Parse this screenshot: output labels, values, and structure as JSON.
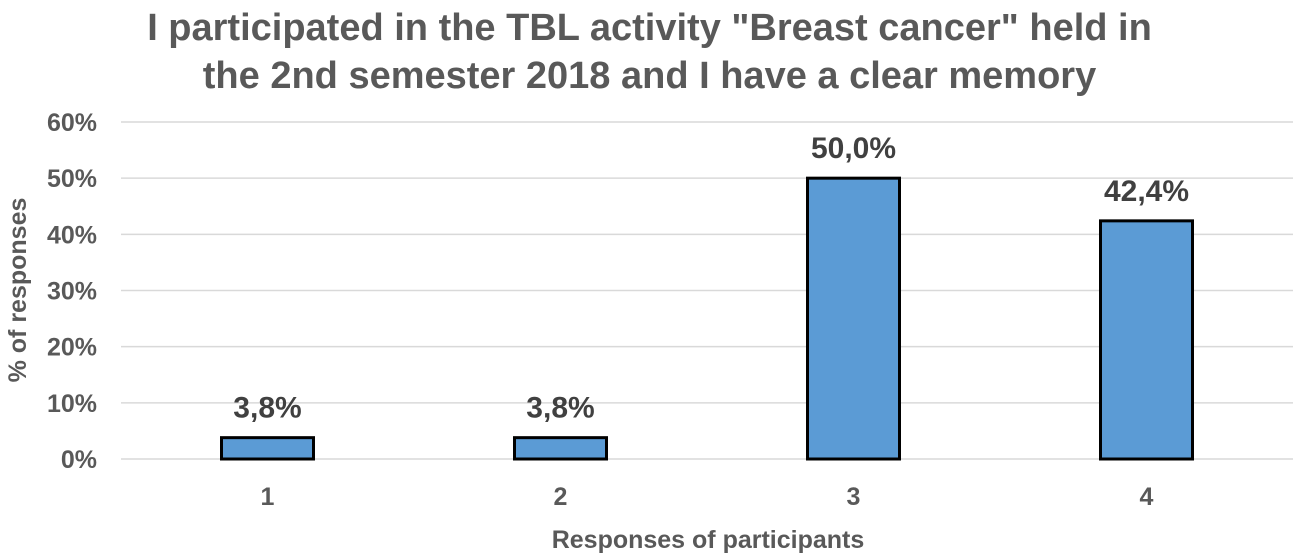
{
  "chart_data": {
    "type": "bar",
    "title_lines": [
      "I participated in the TBL activity \"Breast cancer\" held in",
      "the 2nd semester 2018 and I have a clear memory"
    ],
    "categories": [
      "1",
      "2",
      "3",
      "4"
    ],
    "values": [
      3.8,
      3.8,
      50.0,
      42.4
    ],
    "data_labels": [
      "3,8%",
      "3,8%",
      "50,0%",
      "42,4%"
    ],
    "xlabel": "Responses of participants",
    "ylabel": "% of responses",
    "ylim": [
      0,
      60
    ],
    "yticks": [
      0,
      10,
      20,
      30,
      40,
      50,
      60
    ],
    "ytick_labels": [
      "0%",
      "10%",
      "20%",
      "30%",
      "40%",
      "50%",
      "60%"
    ],
    "grid": true,
    "legend": "none",
    "colors": {
      "bar_fill": "#5B9BD5",
      "bar_stroke": "#000000",
      "grid": "#D9D9D9",
      "axis": "#D9D9D9",
      "text": "#595959"
    }
  }
}
